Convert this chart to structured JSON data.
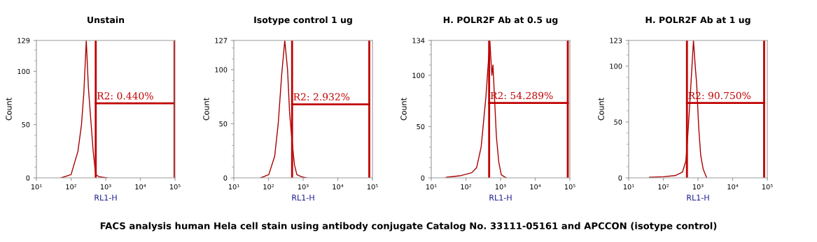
{
  "chart_data": [
    {
      "type": "line",
      "title": "Unstain",
      "xlabel": "RL1-H",
      "ylabel": "Count",
      "log": "x",
      "xlim": [
        10,
        100000
      ],
      "xticks": [
        {
          "value": 10,
          "label": "10¹"
        },
        {
          "value": 100,
          "label": "10²"
        },
        {
          "value": 1000,
          "label": "10³"
        },
        {
          "value": 10000,
          "label": "10⁴"
        },
        {
          "value": 100000,
          "label": "10⁵"
        }
      ],
      "ylim": [
        0,
        129
      ],
      "yticks": [
        0,
        50,
        100,
        129
      ],
      "grid": false,
      "marker": "none",
      "line_style": "solid",
      "series": [
        {
          "color": "#a80000",
          "x": [
            52,
            100,
            158,
            200,
            234,
            275,
            316,
            370,
            435,
            513,
            650,
            1120
          ],
          "values": [
            0,
            3,
            25,
            50,
            80,
            129,
            85,
            55,
            25,
            3,
            1,
            0
          ]
        }
      ],
      "ref_lines": [
        {
          "axis": "x",
          "value": 515,
          "color": "#c00000"
        },
        {
          "axis": "x",
          "value": 97000,
          "color": "#c00000"
        }
      ],
      "annotations": [
        {
          "text": "R2: 0.440%",
          "x": 515,
          "y": 70
        }
      ]
    },
    {
      "type": "line",
      "title": "Isotype control 1 ug",
      "xlabel": "RL1-H",
      "ylabel": "Count",
      "log": "x",
      "xlim": [
        10,
        100000
      ],
      "xticks": [
        {
          "value": 10,
          "label": "10¹"
        },
        {
          "value": 100,
          "label": "10²"
        },
        {
          "value": 1000,
          "label": "10³"
        },
        {
          "value": 10000,
          "label": "10⁴"
        },
        {
          "value": 100000,
          "label": "10⁵"
        }
      ],
      "ylim": [
        0,
        127
      ],
      "yticks": [
        0,
        50,
        100,
        127
      ],
      "grid": false,
      "marker": "none",
      "line_style": "solid",
      "series": [
        {
          "color": "#a80000",
          "x": [
            60,
            102,
            151,
            191,
            240,
            295,
            355,
            407,
            475,
            562,
            660,
            890,
            1260
          ],
          "values": [
            0,
            3,
            20,
            50,
            95,
            127,
            100,
            60,
            35,
            12,
            3,
            1,
            0
          ]
        }
      ],
      "ref_lines": [
        {
          "axis": "x",
          "value": 480,
          "color": "#c00000"
        },
        {
          "axis": "x",
          "value": 81000,
          "color": "#c00000"
        }
      ],
      "annotations": [
        {
          "text": "R2: 2.932%",
          "x": 480,
          "y": 68
        }
      ]
    },
    {
      "type": "line",
      "title": "H. POLR2F Ab at 0.5 ug",
      "xlabel": "RL1-H",
      "ylabel": "Count",
      "log": "x",
      "xlim": [
        10,
        100000
      ],
      "xticks": [
        {
          "value": 10,
          "label": "10¹"
        },
        {
          "value": 100,
          "label": "10²"
        },
        {
          "value": 1000,
          "label": "10³"
        },
        {
          "value": 10000,
          "label": "10⁴"
        },
        {
          "value": 100000,
          "label": "10⁵"
        }
      ],
      "ylim": [
        0,
        134
      ],
      "yticks": [
        0,
        50,
        100,
        134
      ],
      "grid": false,
      "marker": "none",
      "line_style": "solid",
      "series": [
        {
          "color": "#a80000",
          "x": [
            27,
            68,
            148,
            204,
            275,
            324,
            380,
            490,
            562,
            603,
            676,
            759,
            891,
            1050,
            1450
          ],
          "values": [
            0.5,
            2,
            5,
            10,
            30,
            55,
            80,
            134,
            100,
            110,
            75,
            40,
            15,
            3,
            0
          ]
        }
      ],
      "ref_lines": [
        {
          "axis": "x",
          "value": 468,
          "color": "#c00000"
        },
        {
          "axis": "x",
          "value": 87000,
          "color": "#c00000"
        }
      ],
      "annotations": [
        {
          "text": "R2: 54.289%",
          "x": 468,
          "y": 73
        }
      ]
    },
    {
      "type": "line",
      "title": "H. POLR2F Ab at 1 ug",
      "xlabel": "RL1-H",
      "ylabel": "Count",
      "log": "x",
      "xlim": [
        10,
        100000
      ],
      "xticks": [
        {
          "value": 10,
          "label": "10¹"
        },
        {
          "value": 100,
          "label": "10²"
        },
        {
          "value": 1000,
          "label": "10³"
        },
        {
          "value": 10000,
          "label": "10⁴"
        },
        {
          "value": 100000,
          "label": "10⁵"
        }
      ],
      "ylim": [
        0,
        123
      ],
      "yticks": [
        0,
        50,
        100,
        123
      ],
      "grid": false,
      "marker": "none",
      "line_style": "solid",
      "series": [
        {
          "color": "#a80000",
          "x": [
            40,
            102,
            219,
            355,
            447,
            513,
            603,
            741,
            832,
            912,
            1050,
            1200,
            1410,
            1780
          ],
          "values": [
            0.5,
            1,
            2,
            5,
            15,
            40,
            75,
            123,
            100,
            85,
            45,
            20,
            8,
            0
          ]
        }
      ],
      "ref_lines": [
        {
          "axis": "x",
          "value": 480,
          "color": "#c00000"
        },
        {
          "axis": "x",
          "value": 81000,
          "color": "#c00000"
        }
      ],
      "annotations": [
        {
          "text": "R2: 90.750%",
          "x": 480,
          "y": 67
        },
        "FACS analysis human Hela cell stain using antibody conjugate Catalog No. 33111-05161 and APCCON (isotype control)"
      ]
    }
  ]
}
